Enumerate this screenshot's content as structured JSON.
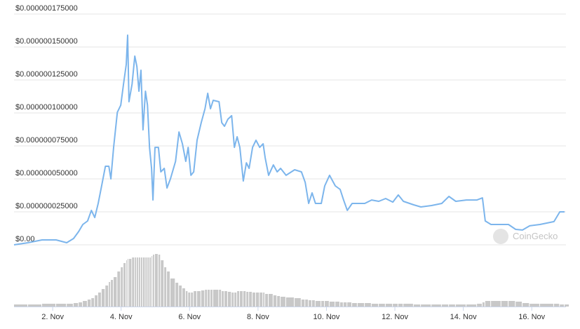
{
  "chart_data": {
    "type": "line",
    "color": "#7cb5ec",
    "grid": true,
    "watermark": "CoinGecko",
    "xlim": [
      0.87,
      17.0
    ],
    "xticks": [
      {
        "value": 2,
        "label": "2. Nov"
      },
      {
        "value": 4,
        "label": "4. Nov"
      },
      {
        "value": 6,
        "label": "6. Nov"
      },
      {
        "value": 8,
        "label": "8. Nov"
      },
      {
        "value": 10,
        "label": "10. Nov"
      },
      {
        "value": 12,
        "label": "12. Nov"
      },
      {
        "value": 14,
        "label": "14. Nov"
      },
      {
        "value": 16,
        "label": "16. Nov"
      }
    ],
    "ylim": [
      0,
      1.75e-07
    ],
    "yticks": [
      {
        "value": 0,
        "label": "$0.00"
      },
      {
        "value": 2.5e-08,
        "label": "$0.000000025000"
      },
      {
        "value": 5e-08,
        "label": "$0.000000050000"
      },
      {
        "value": 7.5e-08,
        "label": "$0.000000075000"
      },
      {
        "value": 1e-07,
        "label": "$0.000000100000"
      },
      {
        "value": 1.25e-07,
        "label": "$0.000000125000"
      },
      {
        "value": 1.5e-07,
        "label": "$0.000000150000"
      },
      {
        "value": 1.75e-07,
        "label": "$0.000000175000"
      }
    ],
    "x": [
      0.87,
      1.28,
      1.69,
      2.1,
      2.41,
      2.61,
      2.76,
      2.88,
      3.02,
      3.13,
      3.23,
      3.33,
      3.43,
      3.54,
      3.64,
      3.7,
      3.78,
      3.89,
      3.99,
      4.07,
      4.15,
      4.19,
      4.23,
      4.32,
      4.4,
      4.46,
      4.52,
      4.58,
      4.64,
      4.71,
      4.77,
      4.83,
      4.89,
      4.93,
      4.99,
      5.09,
      5.16,
      5.26,
      5.34,
      5.44,
      5.59,
      5.69,
      5.79,
      5.89,
      5.96,
      6.04,
      6.12,
      6.22,
      6.34,
      6.45,
      6.53,
      6.61,
      6.69,
      6.86,
      6.94,
      7.02,
      7.12,
      7.23,
      7.31,
      7.39,
      7.47,
      7.57,
      7.66,
      7.74,
      7.84,
      7.94,
      8.05,
      8.15,
      8.21,
      8.31,
      8.45,
      8.56,
      8.66,
      8.82,
      9.07,
      9.27,
      9.38,
      9.48,
      9.58,
      9.68,
      9.85,
      9.95,
      10.09,
      10.26,
      10.4,
      10.5,
      10.61,
      10.75,
      10.91,
      11.12,
      11.32,
      11.53,
      11.73,
      11.94,
      12.1,
      12.25,
      12.55,
      12.76,
      13.07,
      13.37,
      13.58,
      13.78,
      14.09,
      14.4,
      14.56,
      14.64,
      14.81,
      15.11,
      15.32,
      15.53,
      15.73,
      15.94,
      16.24,
      16.65,
      16.82,
      16.96
    ],
    "values": [
      0,
      1.6e-09,
      3.7e-09,
      3.7e-09,
      1.6e-09,
      4.8e-09,
      1.01e-08,
      1.54e-08,
      1.81e-08,
      2.61e-08,
      2.07e-08,
      3.14e-08,
      4.47e-08,
      5.96e-08,
      5.96e-08,
      5e-08,
      7.39e-08,
      1.005e-07,
      1.059e-07,
      1.218e-07,
      1.367e-07,
      1.59e-07,
      1.085e-07,
      1.218e-07,
      1.431e-07,
      1.351e-07,
      1.165e-07,
      1.324e-07,
      8.72e-08,
      1.165e-07,
      1.059e-07,
      7.39e-08,
      5.8e-08,
      3.4e-08,
      7.39e-08,
      7.39e-08,
      5.53e-08,
      5.8e-08,
      4.31e-08,
      5e-08,
      6.33e-08,
      8.56e-08,
      7.66e-08,
      6.33e-08,
      7.39e-08,
      5.27e-08,
      5.53e-08,
      7.93e-08,
      9.26e-08,
      1.032e-07,
      1.149e-07,
      1.032e-07,
      1.096e-07,
      1.085e-07,
      9.26e-08,
      8.99e-08,
      9.52e-08,
      9.79e-08,
      7.39e-08,
      8.19e-08,
      7.39e-08,
      4.84e-08,
      6.22e-08,
      5.8e-08,
      7.39e-08,
      7.93e-08,
      7.39e-08,
      7.66e-08,
      6.6e-08,
      5.27e-08,
      6.06e-08,
      5.53e-08,
      5.8e-08,
      5.27e-08,
      5.69e-08,
      5.53e-08,
      4.73e-08,
      3.14e-08,
      3.94e-08,
      3.14e-08,
      3.14e-08,
      4.47e-08,
      5.27e-08,
      4.47e-08,
      4.2e-08,
      3.4e-08,
      2.61e-08,
      3.14e-08,
      3.14e-08,
      3.14e-08,
      3.4e-08,
      3.3e-08,
      3.51e-08,
      3.24e-08,
      3.78e-08,
      3.3e-08,
      3.03e-08,
      2.87e-08,
      2.98e-08,
      3.14e-08,
      3.67e-08,
      3.3e-08,
      3.4e-08,
      3.4e-08,
      3.56e-08,
      1.81e-08,
      1.54e-08,
      1.54e-08,
      1.54e-08,
      1.17e-08,
      1.12e-08,
      1.44e-08,
      1.54e-08,
      1.76e-08,
      2.5e-08,
      2.5e-08
    ],
    "volume": {
      "color": "#c8c8c8",
      "values": [
        3,
        3,
        4,
        4,
        4,
        5,
        6,
        8,
        10,
        12,
        16,
        20,
        25,
        30,
        35,
        38,
        42,
        50,
        56,
        62,
        66,
        68,
        68,
        70,
        70,
        70,
        70,
        70,
        70,
        70,
        70,
        70,
        72,
        74,
        75,
        74,
        66,
        56,
        50,
        40,
        34,
        30,
        26,
        22,
        20,
        20,
        22,
        22,
        23,
        24,
        24,
        24,
        24,
        24,
        22,
        22,
        21,
        20,
        20,
        22,
        22,
        22,
        21,
        21,
        20,
        20,
        20,
        20,
        18,
        18,
        16,
        15,
        14,
        13,
        12,
        10,
        10,
        9,
        9,
        8,
        8,
        8,
        7,
        7,
        6,
        6,
        6,
        5,
        5,
        5,
        4,
        4,
        4,
        4,
        4,
        4,
        3,
        3,
        3,
        3,
        3,
        3,
        3,
        4,
        6,
        8,
        8,
        8,
        8,
        7,
        5,
        4,
        4,
        4,
        3,
        3
      ]
    }
  }
}
